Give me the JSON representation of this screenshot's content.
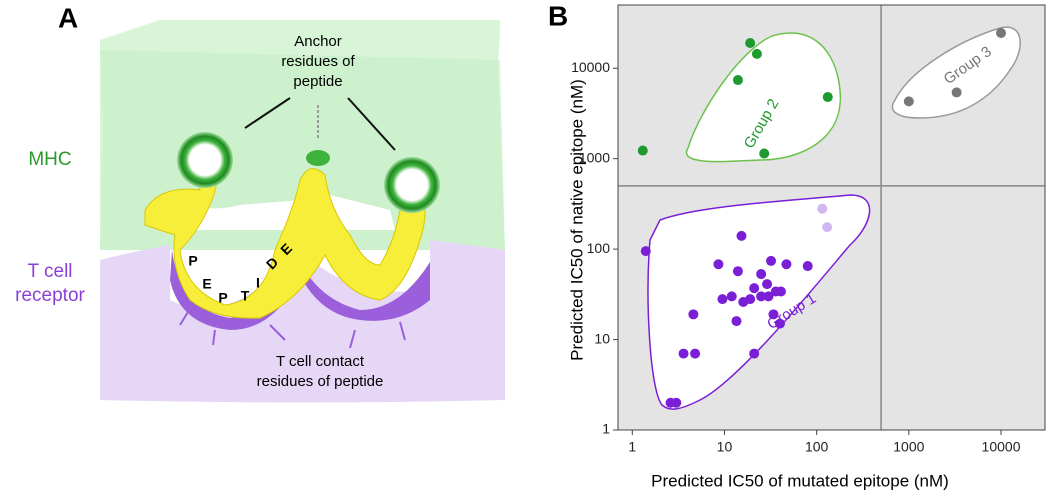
{
  "panel_a": {
    "label": "A",
    "mhc": "MHC",
    "tcr": [
      "T cell",
      "receptor"
    ],
    "anchor": [
      "Anchor",
      "residues of",
      "peptide"
    ],
    "contact": [
      "T cell contact",
      "residues of peptide"
    ],
    "peptide": [
      "P",
      "E",
      "P",
      "T",
      "I",
      "D",
      "E"
    ]
  },
  "chart_data": {
    "type": "scatter",
    "panel_label": "B",
    "x_label": "Predicted IC50 of mutated epitope (nM)",
    "y_label": "Predicted IC50 of native epitope (nM)",
    "log_x": true,
    "log_y": true,
    "xlim": [
      0.7,
      30000
    ],
    "ylim": [
      1,
      50000
    ],
    "xticks": [
      1,
      10,
      100,
      1000,
      10000
    ],
    "yticks": [
      1,
      10,
      100,
      1000,
      10000
    ],
    "threshold": 500,
    "series": [
      {
        "name": "Group 1",
        "color": "#7a1fd6",
        "x": [
          1.4,
          2.6,
          3.0,
          3.6,
          4.8,
          4.6,
          8.6,
          9.5,
          12,
          14,
          15.3,
          16,
          13.5,
          19,
          21,
          21,
          25,
          25,
          29,
          30,
          32,
          36,
          34,
          41,
          47,
          80,
          40,
          115,
          130
        ],
        "values": [
          95,
          2,
          2,
          7,
          7,
          19,
          68,
          28,
          30,
          57,
          140,
          26,
          16,
          28,
          7,
          37,
          30,
          53,
          41,
          30,
          74,
          34,
          19,
          34,
          68,
          65,
          15,
          280,
          175
        ],
        "point_colors": [
          "#7a1fd6",
          "#7a1fd6",
          "#7a1fd6",
          "#7a1fd6",
          "#7a1fd6",
          "#7a1fd6",
          "#7a1fd6",
          "#7a1fd6",
          "#7a1fd6",
          "#7a1fd6",
          "#7a1fd6",
          "#7a1fd6",
          "#7a1fd6",
          "#7a1fd6",
          "#7a1fd6",
          "#7a1fd6",
          "#7a1fd6",
          "#7a1fd6",
          "#7a1fd6",
          "#7a1fd6",
          "#7a1fd6",
          "#7a1fd6",
          "#7a1fd6",
          "#7a1fd6",
          "#7a1fd6",
          "#7a1fd6",
          "#7a1fd6",
          "#d2b6f0",
          "#d2b6f0"
        ]
      },
      {
        "name": "Group 2",
        "color": "#1f9a2e",
        "x": [
          1.3,
          14,
          19,
          22.5,
          27,
          132
        ],
        "values": [
          1230,
          7400,
          19000,
          14400,
          1140,
          4800
        ]
      },
      {
        "name": "Group 3",
        "color": "#777777",
        "x": [
          1000,
          3300,
          10000
        ],
        "values": [
          4300,
          5400,
          24500
        ]
      }
    ]
  }
}
